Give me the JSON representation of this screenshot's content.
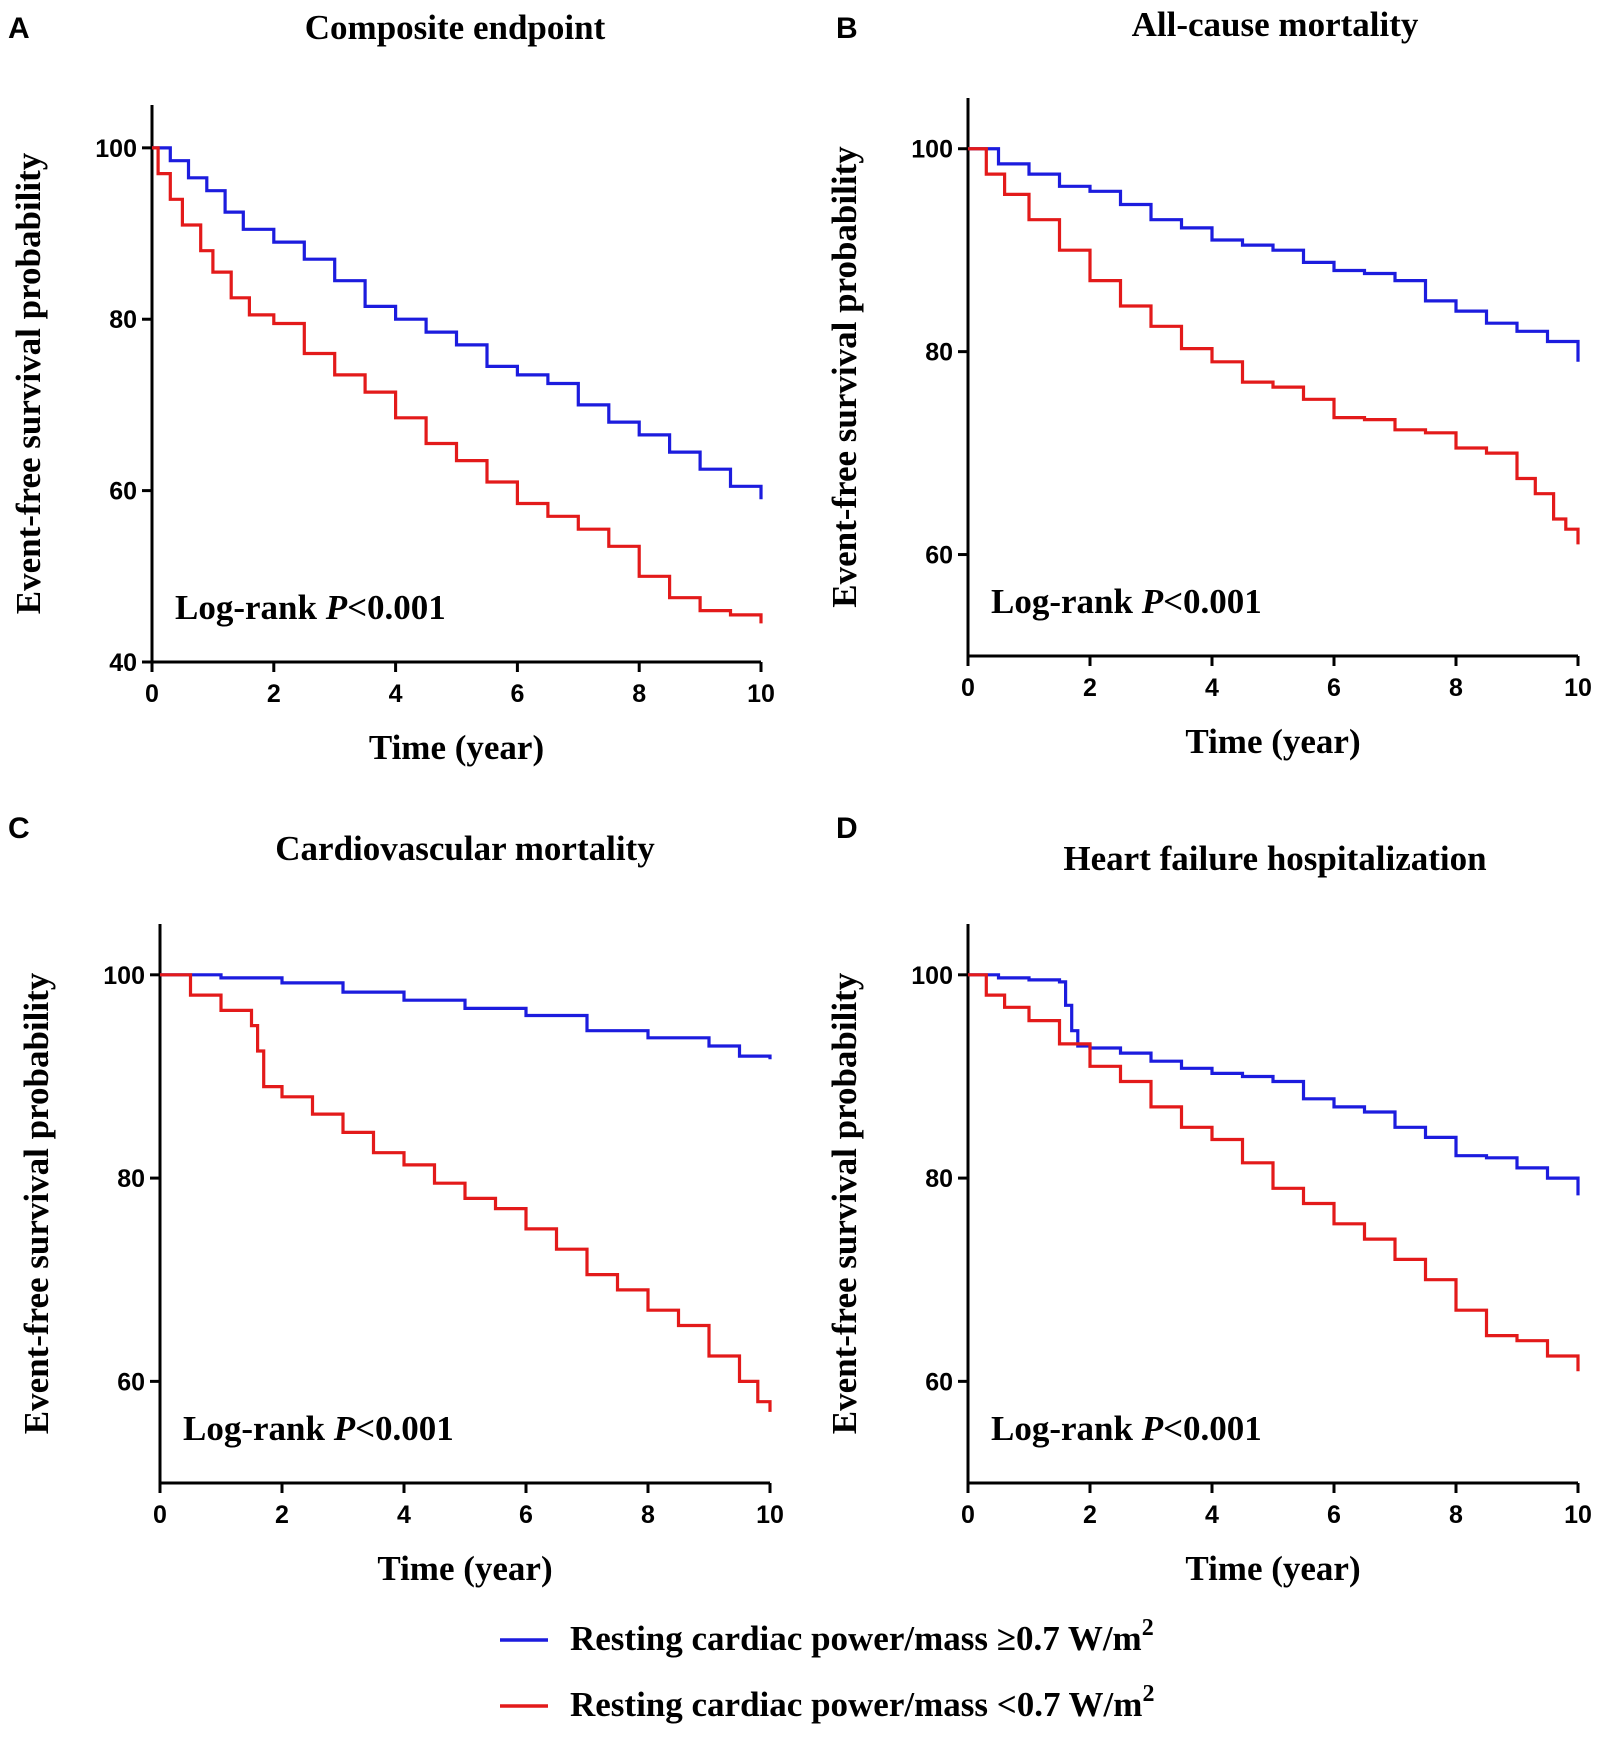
{
  "legend": {
    "entries": [
      {
        "label": "Resting cardiac power/mass ≥0.7 W/m",
        "sup": "2",
        "color": "#1c1cde"
      },
      {
        "label": "Resting cardiac power/mass <0.7 W/m",
        "sup": "2",
        "color": "#e31a1a"
      }
    ]
  },
  "chart_data": [
    {
      "type": "line",
      "panel": "A",
      "title": "Composite endpoint",
      "xlabel": "Time (year)",
      "ylabel": "Event-free survival probability",
      "xlim": [
        0,
        10
      ],
      "ylim": [
        40,
        105
      ],
      "xticks": [
        0,
        2,
        4,
        6,
        8,
        10
      ],
      "yticks": [
        40,
        60,
        80,
        100
      ],
      "annotation": {
        "prefix": "Log-rank ",
        "italic": "P",
        "suffix": "<0.001"
      },
      "series": [
        {
          "legend_index": 0,
          "color": "#1c1cde",
          "x": [
            0,
            0.3,
            0.6,
            0.9,
            1.2,
            1.5,
            2,
            2.5,
            3,
            3.5,
            4,
            4.5,
            5,
            5.5,
            6,
            6.5,
            7,
            7.5,
            8,
            8.5,
            9,
            9.5,
            10
          ],
          "y": [
            100,
            98.5,
            96.5,
            95,
            92.5,
            90.5,
            89,
            87,
            84.5,
            81.5,
            80,
            78.5,
            77,
            74.5,
            73.5,
            72.5,
            70,
            68,
            66.5,
            64.5,
            62.5,
            60.5,
            59
          ]
        },
        {
          "legend_index": 1,
          "color": "#e31a1a",
          "x": [
            0,
            0.1,
            0.3,
            0.5,
            0.8,
            1,
            1.3,
            1.6,
            2,
            2.5,
            3,
            3.5,
            4,
            4.5,
            5,
            5.5,
            6,
            6.5,
            7,
            7.5,
            8,
            8.5,
            9,
            9.5,
            10
          ],
          "y": [
            100,
            97,
            94,
            91,
            88,
            85.5,
            82.5,
            80.5,
            79.5,
            76,
            73.5,
            71.5,
            68.5,
            65.5,
            63.5,
            61,
            58.5,
            57,
            55.5,
            53.5,
            50,
            47.5,
            46,
            45.5,
            44.5
          ]
        }
      ]
    },
    {
      "type": "line",
      "panel": "B",
      "title": "All-cause mortality",
      "xlabel": "Time (year)",
      "ylabel": "Event-free survival probability",
      "xlim": [
        0,
        10
      ],
      "ylim": [
        50,
        105
      ],
      "xticks": [
        0,
        2,
        4,
        6,
        8,
        10
      ],
      "yticks": [
        60,
        80,
        100
      ],
      "annotation": {
        "prefix": "Log-rank ",
        "italic": "P",
        "suffix": "<0.001"
      },
      "series": [
        {
          "legend_index": 0,
          "color": "#1c1cde",
          "x": [
            0,
            0.5,
            1,
            1.5,
            2,
            2.5,
            3,
            3.5,
            4,
            4.5,
            5,
            5.5,
            6,
            6.5,
            7,
            7.5,
            8,
            8.5,
            9,
            9.5,
            10
          ],
          "y": [
            100,
            98.5,
            97.5,
            96.3,
            95.8,
            94.5,
            93,
            92.2,
            91,
            90.5,
            90,
            88.8,
            88,
            87.7,
            87,
            85,
            84,
            82.8,
            82,
            81,
            79
          ]
        },
        {
          "legend_index": 1,
          "color": "#e31a1a",
          "x": [
            0,
            0.3,
            0.6,
            1,
            1.5,
            2,
            2.5,
            3,
            3.5,
            4,
            4.5,
            5,
            5.5,
            6,
            6.5,
            7,
            7.5,
            8,
            8.5,
            9,
            9.3,
            9.6,
            9.8,
            10
          ],
          "y": [
            100,
            97.5,
            95.5,
            93,
            90,
            87,
            84.5,
            82.5,
            80.3,
            79,
            77,
            76.5,
            75.3,
            73.5,
            73.3,
            72.3,
            72,
            70.5,
            70,
            67.5,
            66,
            63.5,
            62.5,
            61
          ]
        }
      ]
    },
    {
      "type": "line",
      "panel": "C",
      "title": "Cardiovascular mortality",
      "xlabel": "Time (year)",
      "ylabel": "Event-free survival probability",
      "xlim": [
        0,
        10
      ],
      "ylim": [
        50,
        105
      ],
      "xticks": [
        0,
        2,
        4,
        6,
        8,
        10
      ],
      "yticks": [
        60,
        80,
        100
      ],
      "annotation": {
        "prefix": "Log-rank ",
        "italic": "P",
        "suffix": "<0.001"
      },
      "series": [
        {
          "legend_index": 0,
          "color": "#1c1cde",
          "x": [
            0,
            1,
            2,
            3,
            4,
            5,
            6,
            7,
            8,
            9,
            9.5,
            10
          ],
          "y": [
            100,
            99.7,
            99.2,
            98.3,
            97.5,
            96.7,
            96,
            94.5,
            93.8,
            93,
            92,
            91.7
          ]
        },
        {
          "legend_index": 1,
          "color": "#e31a1a",
          "x": [
            0,
            0.5,
            1,
            1.5,
            1.6,
            1.7,
            2,
            2.5,
            3,
            3.5,
            4,
            4.5,
            5,
            5.5,
            6,
            6.5,
            7,
            7.5,
            8,
            8.5,
            9,
            9.5,
            9.8,
            10
          ],
          "y": [
            100,
            98,
            96.5,
            95,
            92.5,
            89,
            88,
            86.3,
            84.5,
            82.5,
            81.3,
            79.5,
            78,
            77,
            75,
            73,
            70.5,
            69,
            67,
            65.5,
            62.5,
            60,
            58,
            57
          ]
        }
      ]
    },
    {
      "type": "line",
      "panel": "D",
      "title": "Heart failure hospitalization",
      "xlabel": "Time (year)",
      "ylabel": "Event-free survival probability",
      "xlim": [
        0,
        10
      ],
      "ylim": [
        50,
        105
      ],
      "xticks": [
        0,
        2,
        4,
        6,
        8,
        10
      ],
      "yticks": [
        60,
        80,
        100
      ],
      "annotation": {
        "prefix": "Log-rank ",
        "italic": "P",
        "suffix": "<0.001"
      },
      "series": [
        {
          "legend_index": 0,
          "color": "#1c1cde",
          "x": [
            0,
            0.5,
            1,
            1.5,
            1.6,
            1.7,
            1.8,
            2,
            2.5,
            3,
            3.5,
            4,
            4.5,
            5,
            5.5,
            6,
            6.5,
            7,
            7.5,
            8,
            8.5,
            9,
            9.5,
            10
          ],
          "y": [
            100,
            99.7,
            99.5,
            99.3,
            97,
            94.5,
            93,
            92.8,
            92.3,
            91.5,
            90.8,
            90.3,
            90,
            89.5,
            87.8,
            87,
            86.5,
            85,
            84,
            82.2,
            82,
            81,
            80,
            78.3
          ]
        },
        {
          "legend_index": 1,
          "color": "#e31a1a",
          "x": [
            0,
            0.3,
            0.6,
            1,
            1.5,
            2,
            2.5,
            3,
            3.5,
            4,
            4.5,
            5,
            5.5,
            6,
            6.5,
            7,
            7.5,
            8,
            8.5,
            9,
            9.5,
            10
          ],
          "y": [
            100,
            98,
            96.8,
            95.5,
            93.2,
            91,
            89.5,
            87,
            85,
            83.8,
            81.5,
            79,
            77.5,
            75.5,
            74,
            72,
            70,
            67,
            64.5,
            64,
            62.5,
            61
          ]
        }
      ]
    }
  ]
}
